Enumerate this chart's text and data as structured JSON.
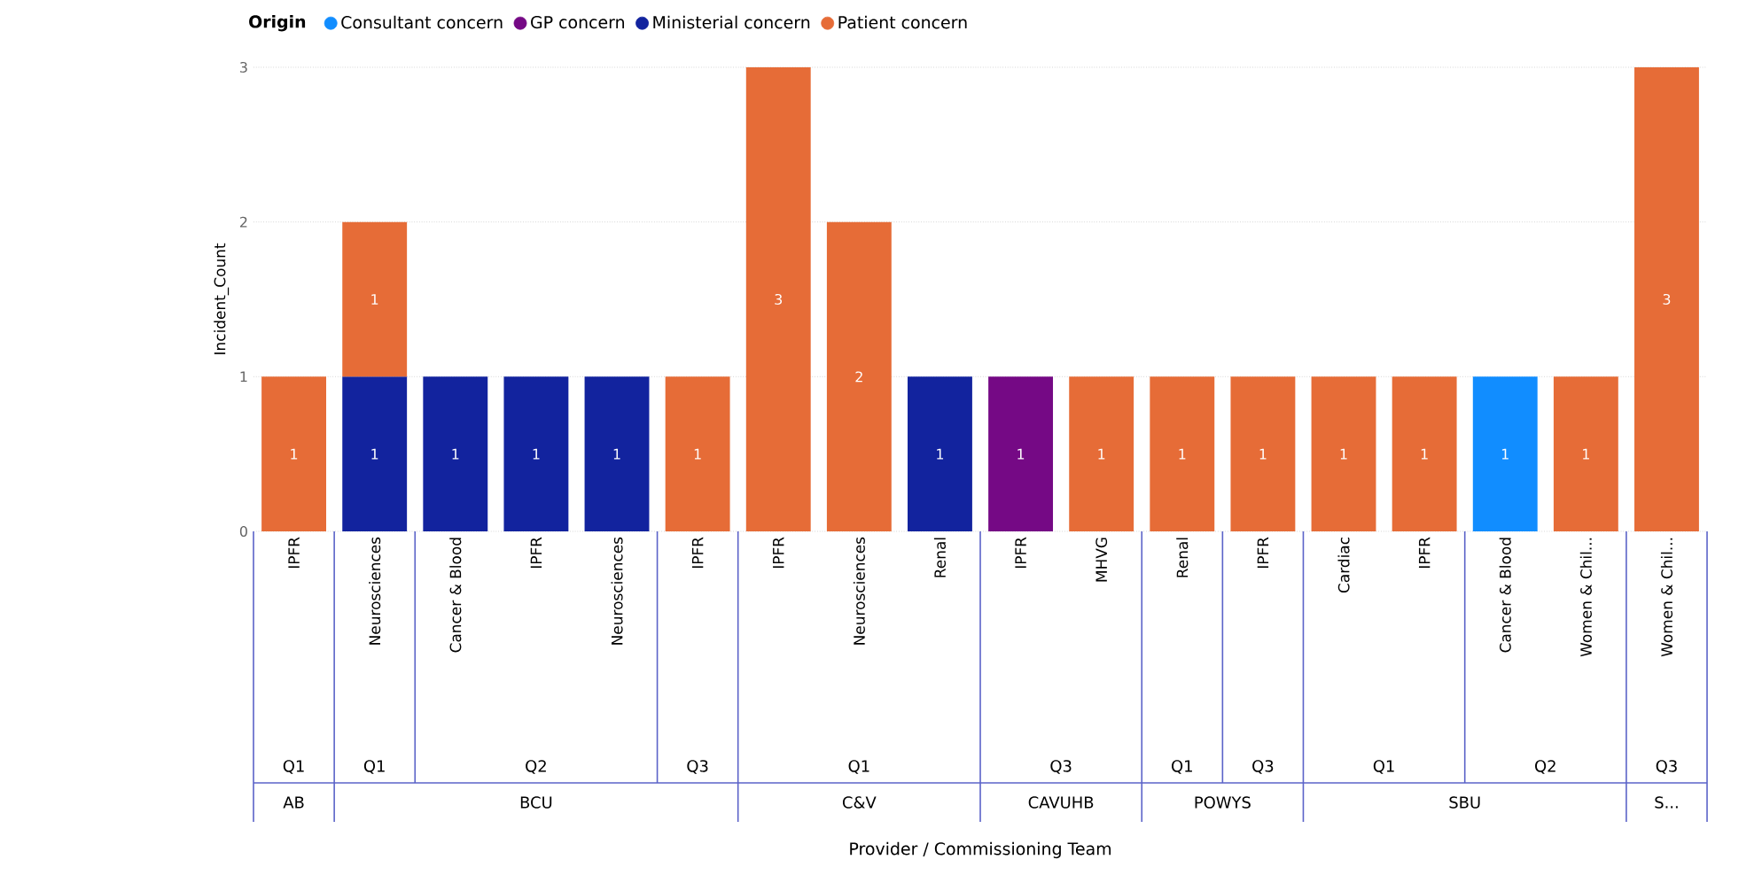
{
  "chart_data": {
    "type": "bar",
    "stacked": true,
    "legend_title": "Origin",
    "ylabel": "Incident_Count",
    "categories": [
      "IPFR",
      "Neurosciences",
      "Cancer & Blood",
      "IPFR",
      "Neurosciences",
      "IPFR",
      "IPFR",
      "Neurosciences",
      "Renal",
      "IPFR",
      "MHVG",
      "Renal",
      "IPFR",
      "Cardiac",
      "IPFR",
      "Cancer & Blood",
      "Women & Chil...",
      "Women & Chil..."
    ],
    "series": [
      {
        "name": "Consultant concern",
        "color": "#118dff",
        "values": [
          null,
          null,
          null,
          null,
          null,
          null,
          null,
          null,
          null,
          null,
          null,
          null,
          null,
          null,
          null,
          1,
          null,
          null
        ]
      },
      {
        "name": "GP concern",
        "color": "#750985",
        "values": [
          null,
          null,
          null,
          null,
          null,
          null,
          null,
          null,
          null,
          1,
          null,
          null,
          null,
          null,
          null,
          null,
          null,
          null
        ]
      },
      {
        "name": "Ministerial concern",
        "color": "#12239e",
        "values": [
          null,
          1,
          1,
          1,
          1,
          null,
          null,
          null,
          1,
          null,
          null,
          null,
          null,
          null,
          null,
          null,
          null,
          null
        ]
      },
      {
        "name": "Patient concern",
        "color": "#e66c37",
        "values": [
          1,
          1,
          null,
          null,
          null,
          1,
          3,
          2,
          null,
          null,
          1,
          1,
          1,
          1,
          1,
          null,
          1,
          3
        ]
      }
    ],
    "ylim": [
      0,
      3
    ],
    "yticks": [
      0,
      1,
      2,
      3
    ],
    "grid": "y",
    "legend": "top left",
    "data_labels": true,
    "annotations": [
      "Q1",
      "Q1",
      "Q2",
      "Q3",
      "Q1",
      "Q3",
      "Q1",
      "Q3",
      "Q1",
      "Q2",
      "Q3",
      "AB",
      "BCU",
      "C&V",
      "CAVUHB",
      "POWYS",
      "SBU",
      "S...",
      "Provider / Commissioning Team"
    ]
  }
}
